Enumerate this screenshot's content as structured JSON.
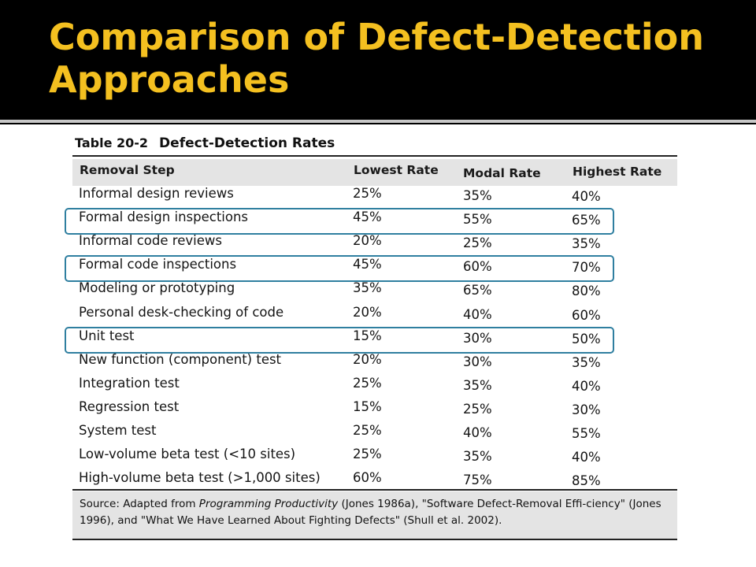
{
  "slide": {
    "title_line1": "Comparison of Defect-Detection",
    "title_line2": "Approaches"
  },
  "table": {
    "number": "Table 20-2",
    "title": "Defect-Detection Rates",
    "headers": {
      "step": "Removal Step",
      "low": "Lowest Rate",
      "modal": "Modal Rate",
      "high": "Highest Rate"
    },
    "rows": [
      {
        "step": "Informal design reviews",
        "low": "25%",
        "modal": "35%",
        "high": "40%",
        "highlighted": false
      },
      {
        "step": "Formal design inspections",
        "low": "45%",
        "modal": "55%",
        "high": "65%",
        "highlighted": true
      },
      {
        "step": "Informal code reviews",
        "low": "20%",
        "modal": "25%",
        "high": "35%",
        "highlighted": false
      },
      {
        "step": "Formal code inspections",
        "low": "45%",
        "modal": "60%",
        "high": "70%",
        "highlighted": true
      },
      {
        "step": "Modeling or prototyping",
        "low": "35%",
        "modal": "65%",
        "high": "80%",
        "highlighted": false
      },
      {
        "step": "Personal desk-checking of code",
        "low": "20%",
        "modal": "40%",
        "high": "60%",
        "highlighted": false
      },
      {
        "step": "Unit test",
        "low": "15%",
        "modal": "30%",
        "high": "50%",
        "highlighted": true
      },
      {
        "step": "New function (component) test",
        "low": "20%",
        "modal": "30%",
        "high": "35%",
        "highlighted": false
      },
      {
        "step": "Integration test",
        "low": "25%",
        "modal": "35%",
        "high": "40%",
        "highlighted": false
      },
      {
        "step": "Regression test",
        "low": "15%",
        "modal": "25%",
        "high": "30%",
        "highlighted": false
      },
      {
        "step": "System test",
        "low": "25%",
        "modal": "40%",
        "high": "55%",
        "highlighted": false
      },
      {
        "step": "Low-volume beta test (<10 sites)",
        "low": "25%",
        "modal": "35%",
        "high": "40%",
        "highlighted": false
      },
      {
        "step": "High-volume beta test (>1,000 sites)",
        "low": "60%",
        "modal": "75%",
        "high": "85%",
        "highlighted": false
      }
    ],
    "source": {
      "prefix": "Source: Adapted from ",
      "book": "Programming Productivity",
      "rest": " (Jones 1986a), \"Software Defect-Removal Effi-ciency\" (Jones 1996), and \"What We Have Learned About Fighting Defects\" (Shull et al. 2002)."
    }
  },
  "colors": {
    "title": "#f4c020",
    "highlight_border": "#2f7fa0",
    "header_band": "#e4e4e4"
  }
}
